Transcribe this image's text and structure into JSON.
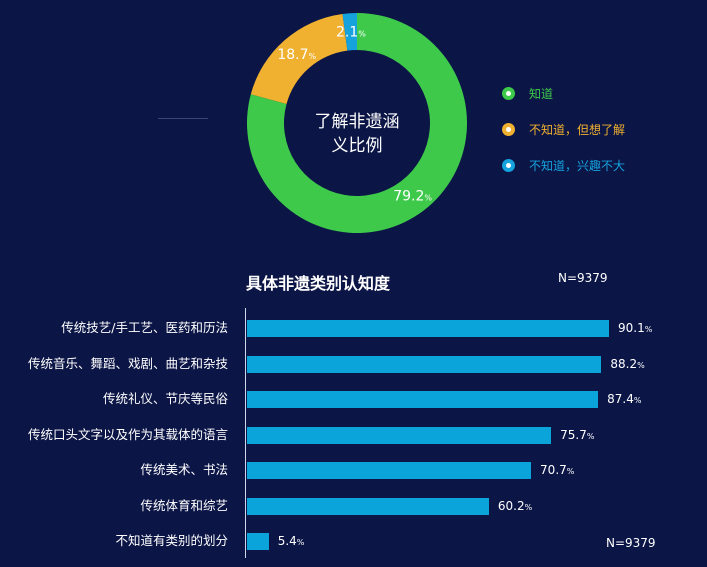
{
  "chart_data": [
    {
      "type": "pie",
      "title": "了解非遗涵义比例",
      "title_lines": [
        "了解非遗涵",
        "义比例"
      ],
      "slices": [
        {
          "label": "知道",
          "value": 79.2,
          "value_text": "79.2",
          "color": "#3ec94a"
        },
        {
          "label": "不知道，但想了解",
          "value": 18.7,
          "value_text": "18.7",
          "color": "#f0b030"
        },
        {
          "label": "不知道，兴趣不大",
          "value": 2.1,
          "value_text": "2.1",
          "color": "#15a2dd"
        }
      ],
      "percent_sign": "%",
      "legend_position": "right"
    },
    {
      "type": "bar",
      "orientation": "horizontal",
      "title": "具体非遗类别认知度",
      "categories": [
        "传统技艺/手工艺、医药和历法",
        "传统音乐、舞蹈、戏剧、曲艺和杂技",
        "传统礼仪、节庆等民俗",
        "传统口头文字以及作为其载体的语言",
        "传统美术、书法",
        "传统体育和综艺",
        "不知道有类别的划分"
      ],
      "values": [
        90.1,
        88.2,
        87.4,
        75.7,
        70.7,
        60.2,
        5.4
      ],
      "value_texts": [
        "90.1",
        "88.2",
        "87.4",
        "75.7",
        "70.7",
        "60.2",
        "5.4"
      ],
      "percent_sign": "%",
      "bar_color": "#0aa3da",
      "xlim": [
        0,
        100
      ]
    }
  ],
  "sample_size": {
    "top": "N=9379",
    "bottom": "N=9379"
  }
}
